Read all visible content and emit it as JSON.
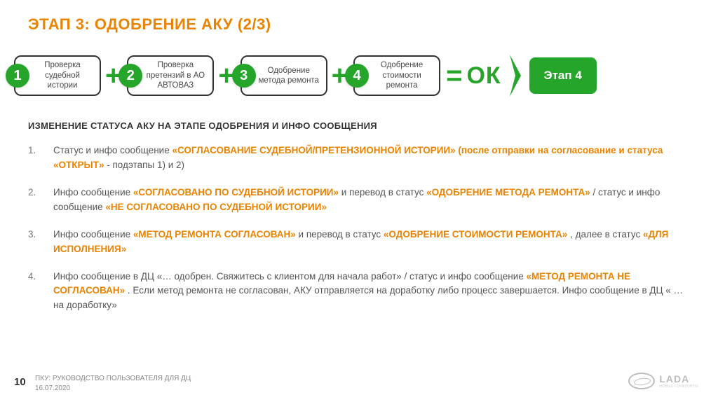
{
  "title": "ЭТАП 3: ОДОБРЕНИЕ АКУ (2/3)",
  "steps": [
    {
      "num": "1",
      "label": "Проверка судебной истории"
    },
    {
      "num": "2",
      "label": "Проверка претензий в АО АВТОВАЗ"
    },
    {
      "num": "3",
      "label": "Одобрение метода ремонта"
    },
    {
      "num": "4",
      "label": "Одобрение стоимости ремонта"
    }
  ],
  "ok_label": "ОК",
  "next_stage": "Этап 4",
  "section_heading": "ИЗМЕНЕНИЕ СТАТУСА АКУ НА ЭТАПЕ ОДОБРЕНИЯ И ИНФО СООБЩЕНИЯ",
  "items": [
    {
      "num": "1.",
      "lead": "Статус и инфо сообщение ",
      "hi1": "«СОГЛАСОВАНИЕ СУДЕБНОЙ/ПРЕТЕНЗИОННОЙ ИСТОРИИ» (после отправки на согласование и статуса «ОТКРЫТ»",
      "tail": " - подэтапы 1) и 2)"
    },
    {
      "num": "2.",
      "lead": "Инфо сообщение ",
      "hi1": "«СОГЛАСОВАНО ПО СУДЕБНОЙ ИСТОРИИ»",
      "mid": " и перевод в статус ",
      "hi2": "«ОДОБРЕНИЕ МЕТОДА РЕМОНТА»",
      "mid2": " / статус и инфо сообщение ",
      "hi3": "«НЕ СОГЛАСОВАНО ПО СУДЕБНОЙ ИСТОРИИ»"
    },
    {
      "num": "3.",
      "lead": "Инфо сообщение ",
      "hi1": "«МЕТОД РЕМОНТА СОГЛАСОВАН»",
      "mid": " и перевод в статус ",
      "hi2": "«ОДОБРЕНИЕ СТОИМОСТИ РЕМОНТА»",
      "mid2": ", далее в статус ",
      "hi3": "«ДЛЯ ИСПОЛНЕНИЯ»"
    },
    {
      "num": "4.",
      "lead": "Инфо сообщение в ДЦ «… одобрен. Свяжитесь с клиентом для начала работ» / статус и инфо сообщение ",
      "hi1": "«МЕТОД РЕМОНТА НЕ СОГЛАСОВАН»",
      "tail": ". Если метод ремонта не согласован, АКУ отправляется на доработку либо процесс завершается. Инфо сообщение в ДЦ « … на доработку»"
    }
  ],
  "page_number": "10",
  "footer_text": "ПКУ: РУКОВОДСТВО ПОЛЬЗОВАТЕЛЯ ДЛЯ ДЦ",
  "footer_date": "16.07.2020",
  "logo_text": "LADA",
  "logo_sub": "НОВЫЕ ГОРИЗОНТЫ"
}
